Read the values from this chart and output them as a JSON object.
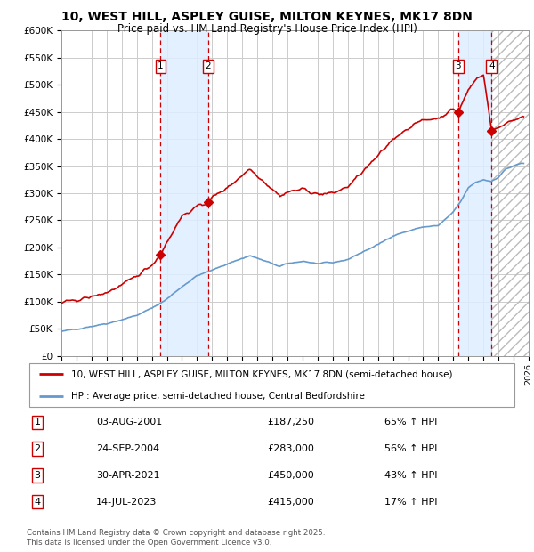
{
  "title_line1": "10, WEST HILL, ASPLEY GUISE, MILTON KEYNES, MK17 8DN",
  "title_line2": "Price paid vs. HM Land Registry's House Price Index (HPI)",
  "ylabel_ticks": [
    "£0",
    "£50K",
    "£100K",
    "£150K",
    "£200K",
    "£250K",
    "£300K",
    "£350K",
    "£400K",
    "£450K",
    "£500K",
    "£550K",
    "£600K"
  ],
  "ytick_vals": [
    0,
    50000,
    100000,
    150000,
    200000,
    250000,
    300000,
    350000,
    400000,
    450000,
    500000,
    550000,
    600000
  ],
  "xmin": 1995,
  "xmax": 2026,
  "ymin": 0,
  "ymax": 600000,
  "sale_dates": [
    2001.58,
    2004.73,
    2021.33,
    2023.54
  ],
  "sale_prices": [
    187250,
    283000,
    450000,
    415000
  ],
  "sale_labels": [
    "1",
    "2",
    "3",
    "4"
  ],
  "legend_red": "10, WEST HILL, ASPLEY GUISE, MILTON KEYNES, MK17 8DN (semi-detached house)",
  "legend_blue": "HPI: Average price, semi-detached house, Central Bedfordshire",
  "table": [
    [
      "1",
      "03-AUG-2001",
      "£187,250",
      "65% ↑ HPI"
    ],
    [
      "2",
      "24-SEP-2004",
      "£283,000",
      "56% ↑ HPI"
    ],
    [
      "3",
      "30-APR-2021",
      "£450,000",
      "43% ↑ HPI"
    ],
    [
      "4",
      "14-JUL-2023",
      "£415,000",
      "17% ↑ HPI"
    ]
  ],
  "footnote": "Contains HM Land Registry data © Crown copyright and database right 2025.\nThis data is licensed under the Open Government Licence v3.0.",
  "red_color": "#cc0000",
  "blue_color": "#6699cc",
  "shading_color": "#ddeeff",
  "grid_color": "#cccccc",
  "background_color": "#ffffff"
}
